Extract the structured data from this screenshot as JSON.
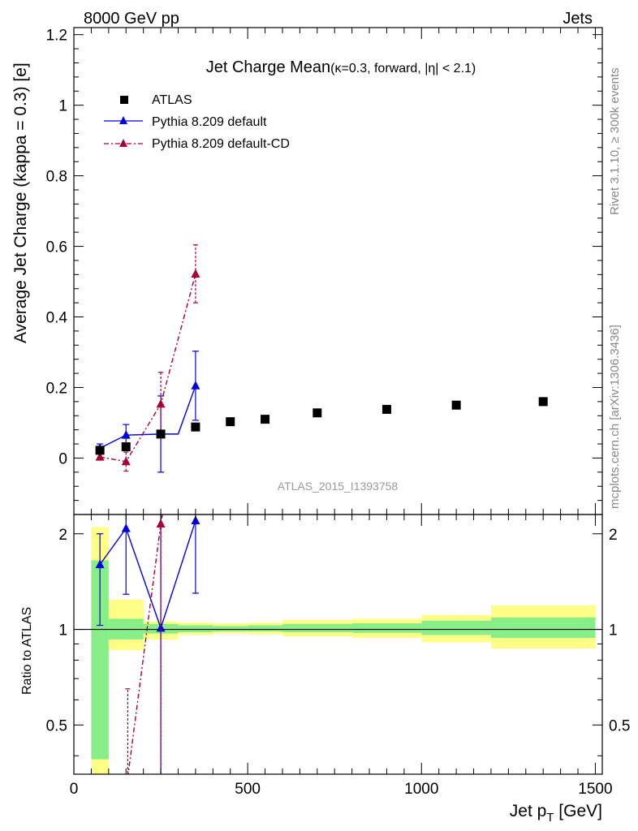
{
  "header": {
    "left_label": "8000 GeV pp",
    "right_label": "Jets"
  },
  "side_labels": {
    "rivet": "Rivet 3.1.10, ≥ 300k events",
    "mcplots": "mcplots.cern.ch [arXiv:1306.3436]"
  },
  "chart_data": [
    {
      "type": "scatter",
      "panel": "main",
      "title_main": "Jet Charge Mean",
      "title_sub": "(κ=0.3, forward, |η| < 2.1)",
      "ylabel": "Average Jet Charge (kappa = 0.3) [e]",
      "watermark": "ATLAS_2015_I1393758",
      "xlim": [
        0,
        1520
      ],
      "ylim": [
        -0.16,
        1.22
      ],
      "yticks": [
        "0",
        "0.2",
        "0.4",
        "0.6",
        "0.8",
        "1",
        "1.2"
      ],
      "legend_position": "top-left",
      "series": [
        {
          "name": "ATLAS",
          "style": "data",
          "color": "#000000",
          "points": [
            {
              "x": 75,
              "y": 0.022
            },
            {
              "x": 150,
              "y": 0.032
            },
            {
              "x": 250,
              "y": 0.068
            },
            {
              "x": 350,
              "y": 0.088
            },
            {
              "x": 450,
              "y": 0.103
            },
            {
              "x": 550,
              "y": 0.11
            },
            {
              "x": 700,
              "y": 0.128
            },
            {
              "x": 900,
              "y": 0.138
            },
            {
              "x": 1100,
              "y": 0.15
            },
            {
              "x": 1350,
              "y": 0.16
            }
          ]
        },
        {
          "name": "Pythia 8.209 default",
          "style": "solid",
          "color": "#0000dd",
          "points": [
            {
              "x": 75,
              "y": 0.028,
              "err": 0.012,
              "xlo": 65,
              "xhi": 100
            },
            {
              "x": 150,
              "y": 0.065,
              "err": 0.03,
              "xlo": 100,
              "xhi": 200
            },
            {
              "x": 250,
              "y": 0.068,
              "err": 0.108,
              "xlo": 200,
              "xhi": 300
            },
            {
              "x": 350,
              "y": 0.205,
              "err": 0.098,
              "xlo": 300,
              "xhi": 350
            }
          ]
        },
        {
          "name": "Pythia 8.209 default-CD",
          "style": "dashdot",
          "color": "#aa0033",
          "points": [
            {
              "x": 75,
              "y": 0.003,
              "err": 0.008
            },
            {
              "x": 150,
              "y": -0.01,
              "err": 0.027
            },
            {
              "x": 250,
              "y": 0.153,
              "err": 0.09
            },
            {
              "x": 350,
              "y": 0.522,
              "err": 0.082
            }
          ]
        }
      ]
    },
    {
      "type": "scatter",
      "panel": "ratio",
      "ylabel": "Ratio to ATLAS",
      "xlabel_main": "Jet p",
      "xlabel_sub": "T",
      "xlabel_unit": "[GeV]",
      "xlim": [
        0,
        1520
      ],
      "ylim": [
        0.35,
        2.3
      ],
      "log_y": true,
      "xticks": [
        "0",
        "500",
        "1000",
        "1500"
      ],
      "yticks": [
        "0.5",
        "1",
        "2"
      ],
      "uncertainty_bands": [
        {
          "xlo": 50,
          "xhi": 100,
          "stat_lo": 0.39,
          "stat_hi": 1.65,
          "tot_lo": 0.35,
          "tot_hi": 2.1
        },
        {
          "xlo": 100,
          "xhi": 200,
          "stat_lo": 0.93,
          "stat_hi": 1.08,
          "tot_lo": 0.86,
          "tot_hi": 1.24
        },
        {
          "xlo": 200,
          "xhi": 300,
          "stat_lo": 0.97,
          "stat_hi": 1.04,
          "tot_lo": 0.93,
          "tot_hi": 1.06
        },
        {
          "xlo": 300,
          "xhi": 400,
          "stat_lo": 0.98,
          "stat_hi": 1.03,
          "tot_lo": 0.96,
          "tot_hi": 1.05
        },
        {
          "xlo": 400,
          "xhi": 500,
          "stat_lo": 0.985,
          "stat_hi": 1.025,
          "tot_lo": 0.97,
          "tot_hi": 1.045
        },
        {
          "xlo": 500,
          "xhi": 600,
          "stat_lo": 0.985,
          "stat_hi": 1.03,
          "tot_lo": 0.965,
          "tot_hi": 1.05
        },
        {
          "xlo": 600,
          "xhi": 800,
          "stat_lo": 0.98,
          "stat_hi": 1.04,
          "tot_lo": 0.95,
          "tot_hi": 1.07
        },
        {
          "xlo": 800,
          "xhi": 1000,
          "stat_lo": 0.975,
          "stat_hi": 1.045,
          "tot_lo": 0.94,
          "tot_hi": 1.08
        },
        {
          "xlo": 1000,
          "xhi": 1200,
          "stat_lo": 0.96,
          "stat_hi": 1.065,
          "tot_lo": 0.91,
          "tot_hi": 1.11
        },
        {
          "xlo": 1200,
          "xhi": 1500,
          "stat_lo": 0.94,
          "stat_hi": 1.09,
          "tot_lo": 0.87,
          "tot_hi": 1.19
        }
      ],
      "series": [
        {
          "name": "Pythia 8.209 default",
          "style": "solid",
          "color": "#0000dd",
          "points": [
            {
              "x": 75,
              "y": 1.6,
              "lo": 1.03,
              "hi": 2.0
            },
            {
              "x": 150,
              "y": 2.08,
              "lo": 1.29,
              "hi": 2.3
            },
            {
              "x": 250,
              "y": 1.01,
              "lo": 0.35,
              "hi": 2.3
            },
            {
              "x": 350,
              "y": 2.2,
              "lo": 1.3,
              "hi": 2.3
            }
          ]
        },
        {
          "name": "Pythia 8.209 default-CD",
          "style": "dashdot",
          "color": "#aa0033",
          "points": [
            {
              "x": 155,
              "y": 0.35,
              "lo": 0.35,
              "hi": 0.65
            },
            {
              "x": 250,
              "y": 2.15,
              "lo": 0.35,
              "hi": 2.3
            }
          ]
        }
      ]
    }
  ]
}
